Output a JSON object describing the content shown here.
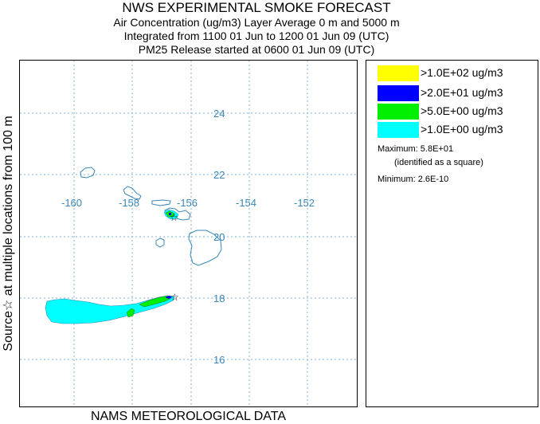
{
  "header": {
    "title": "NWS EXPERIMENTAL SMOKE FORECAST",
    "line2": "Air Concentration (ug/m3) Layer Average    0 m and  5000 m",
    "line3": "Integrated from 1100 01 Jun to 1200 01 Jun 09 (UTC)",
    "line4": "PM25 Release started at 0600 01 Jun 09 (UTC)"
  },
  "map": {
    "lat_labels": [
      "24",
      "22",
      "20",
      "18",
      "16"
    ],
    "lon_labels": [
      "-160",
      "-158",
      "-156",
      "-154",
      "-152"
    ],
    "colors": {
      "grid": "#7fb3d5",
      "coast": "#3a86b8",
      "label": "#3a86b8"
    }
  },
  "legend": {
    "items": [
      {
        "label": ">1.0E+02 ug/m3",
        "color": "#ffff00"
      },
      {
        "label": ">2.0E+01 ug/m3",
        "color": "#0000ff"
      },
      {
        "label": ">5.0E+00 ug/m3",
        "color": "#00ee00"
      },
      {
        "label": ">1.0E+00 ug/m3",
        "color": "#00ffff"
      }
    ],
    "maximum": "Maximum: 5.8E+01",
    "identified": "(identified as a square)",
    "minimum": "Minimum: 2.6E-10"
  },
  "side_label": "Source☆ at multiple locations    from  100 m",
  "bottom_label": "NAMS METEOROLOGICAL DATA"
}
